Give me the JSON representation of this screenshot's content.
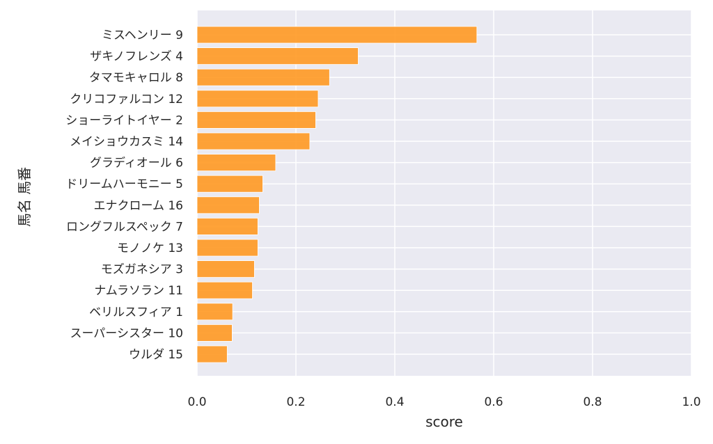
{
  "chart_data": {
    "type": "bar",
    "orientation": "horizontal",
    "title": "",
    "xlabel": "score",
    "ylabel": "馬名 馬番",
    "xlim": [
      0,
      1.0
    ],
    "xticks": [
      "0.0",
      "0.2",
      "0.4",
      "0.6",
      "0.8",
      "1.0"
    ],
    "grid": true,
    "bar_color": "#FF9922",
    "background_color": "#EAEAF2",
    "categories": [
      "ミスヘンリー 9",
      "ザキノフレンズ 4",
      "タマモキャロル 8",
      "クリコファルコン 12",
      "ショーライトイヤー 2",
      "メイショウカスミ 14",
      "グラディオール 6",
      "ドリームハーモニー 5",
      "エナクローム 16",
      "ロングフルスペック 7",
      "モノノケ 13",
      "モズガネシア 3",
      "ナムラソラン 11",
      "ベリルスフィア 1",
      "スーパーシスター 10",
      "ウルダ 15"
    ],
    "values": [
      0.566,
      0.326,
      0.268,
      0.245,
      0.24,
      0.228,
      0.159,
      0.133,
      0.126,
      0.123,
      0.123,
      0.116,
      0.112,
      0.072,
      0.071,
      0.061
    ]
  }
}
